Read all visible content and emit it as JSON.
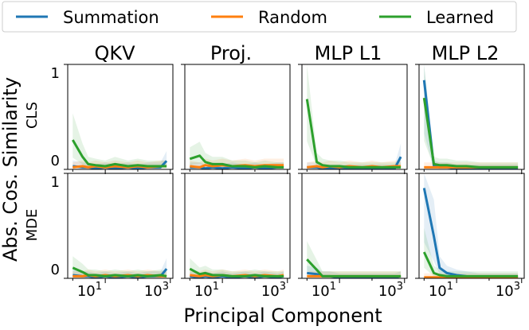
{
  "legend": {
    "items": [
      {
        "label": "Summation",
        "color": "#1f77b4"
      },
      {
        "label": "Random",
        "color": "#ff7f0e"
      },
      {
        "label": "Learned",
        "color": "#2ca02c"
      }
    ]
  },
  "axes": {
    "ylabel": "Abs. Cos. Similarity",
    "xlabel": "Principal Component",
    "yticks": [
      "1",
      "0"
    ],
    "xticks": [
      {
        "base": "10",
        "exp": "1"
      },
      {
        "base": "10",
        "exp": "3"
      }
    ]
  },
  "chart_data": {
    "type": "line",
    "title": "",
    "xscale": "log",
    "xlim": [
      0.7,
      1200
    ],
    "ylim": [
      0,
      1
    ],
    "columns": [
      "QKV",
      "Proj.",
      "MLP L1",
      "MLP L2"
    ],
    "rows": [
      "CLS",
      "MDE"
    ],
    "x": [
      1,
      2,
      3,
      5,
      10,
      20,
      50,
      100,
      200,
      500,
      768
    ],
    "grid": false,
    "legend_position": "top",
    "panels": [
      {
        "row": "CLS",
        "column": "QKV",
        "series": [
          {
            "name": "Summation",
            "values": [
              0.03,
              0.02,
              0.02,
              0.01,
              0.02,
              0.01,
              0.02,
              0.01,
              0.02,
              0.02,
              0.08
            ]
          },
          {
            "name": "Random",
            "values": [
              0.02,
              0.03,
              0.02,
              0.03,
              0.02,
              0.03,
              0.02,
              0.03,
              0.02,
              0.03,
              0.03
            ]
          },
          {
            "name": "Learned",
            "values": [
              0.28,
              0.12,
              0.05,
              0.04,
              0.03,
              0.05,
              0.03,
              0.04,
              0.03,
              0.03,
              0.03
            ]
          }
        ]
      },
      {
        "row": "CLS",
        "column": "Proj.",
        "series": [
          {
            "name": "Summation",
            "values": [
              0.02,
              0.02,
              0.01,
              0.02,
              0.01,
              0.02,
              0.01,
              0.02,
              0.01,
              0.02,
              0.02
            ]
          },
          {
            "name": "Random",
            "values": [
              0.03,
              0.02,
              0.04,
              0.03,
              0.04,
              0.03,
              0.04,
              0.03,
              0.04,
              0.04,
              0.04
            ]
          },
          {
            "name": "Learned",
            "values": [
              0.1,
              0.13,
              0.07,
              0.05,
              0.05,
              0.03,
              0.03,
              0.02,
              0.03,
              0.02,
              0.02
            ]
          }
        ]
      },
      {
        "row": "CLS",
        "column": "MLP L1",
        "series": [
          {
            "name": "Summation",
            "values": [
              0.02,
              0.02,
              0.01,
              0.01,
              0.01,
              0.01,
              0.01,
              0.01,
              0.01,
              0.01,
              0.12
            ]
          },
          {
            "name": "Random",
            "values": [
              0.02,
              0.03,
              0.02,
              0.03,
              0.02,
              0.03,
              0.02,
              0.03,
              0.02,
              0.03,
              0.03
            ]
          },
          {
            "name": "Learned",
            "values": [
              0.67,
              0.07,
              0.04,
              0.03,
              0.03,
              0.02,
              0.02,
              0.02,
              0.02,
              0.02,
              0.02
            ]
          }
        ]
      },
      {
        "row": "CLS",
        "column": "MLP L2",
        "series": [
          {
            "name": "Summation",
            "values": [
              0.85,
              0.03,
              0.02,
              0.02,
              0.01,
              0.01,
              0.01,
              0.01,
              0.01,
              0.01,
              0.01
            ]
          },
          {
            "name": "Random",
            "values": [
              0.02,
              0.02,
              0.02,
              0.02,
              0.02,
              0.02,
              0.02,
              0.02,
              0.02,
              0.02,
              0.02
            ]
          },
          {
            "name": "Learned",
            "values": [
              0.68,
              0.05,
              0.04,
              0.04,
              0.03,
              0.03,
              0.02,
              0.02,
              0.02,
              0.02,
              0.02
            ]
          }
        ]
      },
      {
        "row": "MDE",
        "column": "QKV",
        "series": [
          {
            "name": "Summation",
            "values": [
              0.03,
              0.02,
              0.02,
              0.01,
              0.02,
              0.01,
              0.02,
              0.01,
              0.02,
              0.02,
              0.09
            ]
          },
          {
            "name": "Random",
            "values": [
              0.02,
              0.02,
              0.03,
              0.02,
              0.03,
              0.02,
              0.03,
              0.02,
              0.03,
              0.02,
              0.02
            ]
          },
          {
            "name": "Learned",
            "values": [
              0.1,
              0.06,
              0.03,
              0.03,
              0.02,
              0.03,
              0.02,
              0.03,
              0.02,
              0.03,
              0.02
            ]
          }
        ]
      },
      {
        "row": "MDE",
        "column": "Proj.",
        "series": [
          {
            "name": "Summation",
            "values": [
              0.02,
              0.01,
              0.02,
              0.01,
              0.02,
              0.01,
              0.02,
              0.01,
              0.02,
              0.01,
              0.02
            ]
          },
          {
            "name": "Random",
            "values": [
              0.03,
              0.02,
              0.03,
              0.02,
              0.03,
              0.02,
              0.03,
              0.02,
              0.03,
              0.02,
              0.03
            ]
          },
          {
            "name": "Learned",
            "values": [
              0.09,
              0.04,
              0.05,
              0.03,
              0.03,
              0.02,
              0.02,
              0.03,
              0.02,
              0.02,
              0.02
            ]
          }
        ]
      },
      {
        "row": "MDE",
        "column": "MLP L1",
        "series": [
          {
            "name": "Summation",
            "values": [
              0.05,
              0.04,
              0.02,
              0.02,
              0.01,
              0.01,
              0.01,
              0.01,
              0.01,
              0.01,
              0.02
            ]
          },
          {
            "name": "Random",
            "values": [
              0.02,
              0.02,
              0.02,
              0.02,
              0.02,
              0.02,
              0.02,
              0.02,
              0.02,
              0.02,
              0.02
            ]
          },
          {
            "name": "Learned",
            "values": [
              0.18,
              0.08,
              0.02,
              0.02,
              0.02,
              0.02,
              0.02,
              0.02,
              0.02,
              0.02,
              0.02
            ]
          }
        ]
      },
      {
        "row": "MDE",
        "column": "MLP L2",
        "series": [
          {
            "name": "Summation",
            "values": [
              0.86,
              0.4,
              0.1,
              0.05,
              0.03,
              0.02,
              0.01,
              0.01,
              0.01,
              0.01,
              0.01
            ]
          },
          {
            "name": "Random",
            "values": [
              0.01,
              0.01,
              0.01,
              0.01,
              0.01,
              0.01,
              0.01,
              0.01,
              0.01,
              0.01,
              0.01
            ]
          },
          {
            "name": "Learned",
            "values": [
              0.25,
              0.05,
              0.03,
              0.02,
              0.02,
              0.02,
              0.02,
              0.02,
              0.02,
              0.02,
              0.02
            ]
          }
        ]
      }
    ]
  }
}
